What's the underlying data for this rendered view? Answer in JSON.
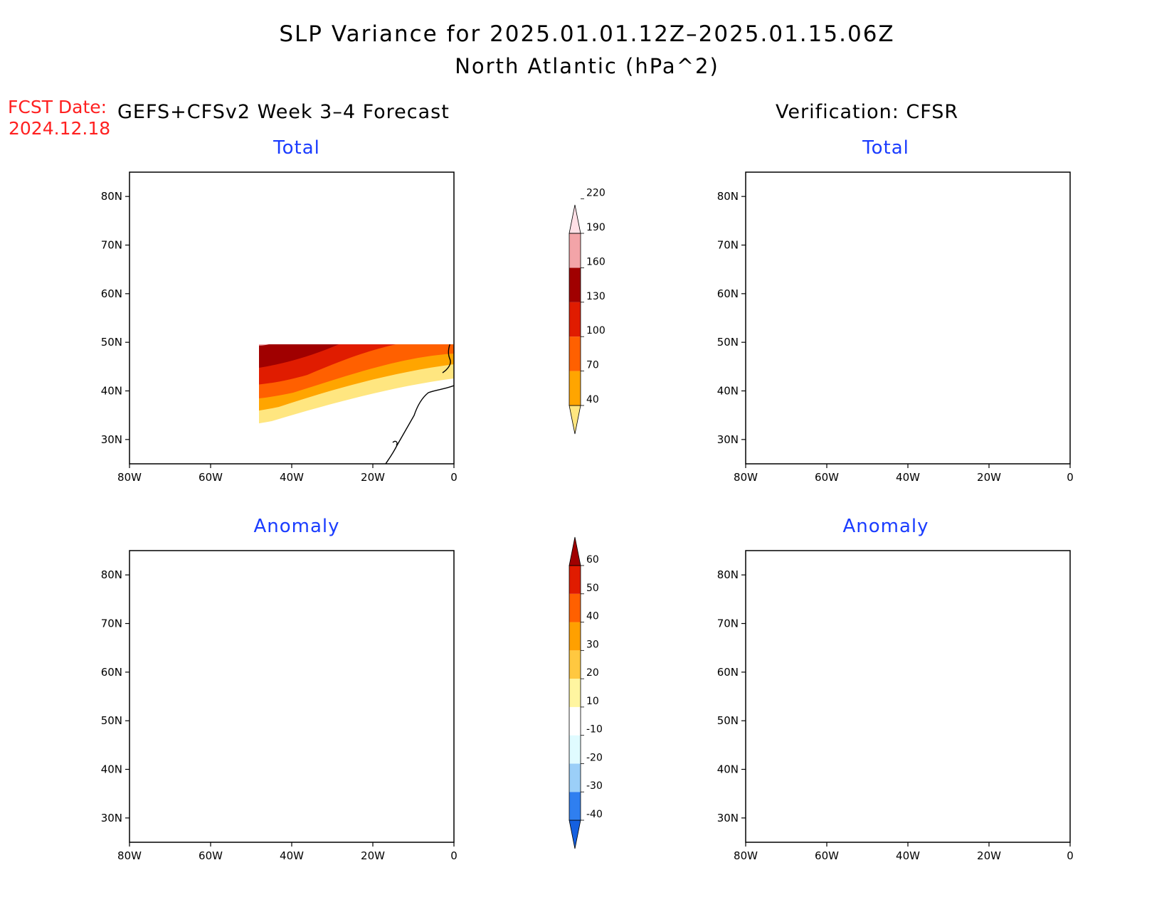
{
  "title": {
    "line1": "SLP Variance for 2025.01.01.12Z–2025.01.15.06Z",
    "line2": "North Atlantic (hPa^2)"
  },
  "fcst_date": {
    "label": "FCST Date:",
    "value": "2024.12.18"
  },
  "columns": {
    "forecast": "GEFS+CFSv2 Week 3–4 Forecast",
    "verification": "Verification: CFSR"
  },
  "panels": {
    "total": "Total",
    "anomaly": "Anomaly"
  },
  "axes": {
    "lat_ticks": [
      "80N",
      "70N",
      "60N",
      "50N",
      "40N",
      "30N"
    ],
    "lon_ticks": [
      "80W",
      "60W",
      "40W",
      "20W",
      "0"
    ]
  },
  "colorbars": {
    "total": {
      "levels": [
        "40",
        "70",
        "100",
        "130",
        "160",
        "190",
        "220"
      ],
      "colors": [
        "#ffe680",
        "#ffa500",
        "#ff6000",
        "#e01c00",
        "#a00000",
        "#f3a4a8",
        "#ffe0e6"
      ]
    },
    "anomaly": {
      "levels": [
        "-40",
        "-30",
        "-20",
        "-10",
        "10",
        "20",
        "30",
        "40",
        "50",
        "60"
      ],
      "colors": [
        "#1560e0",
        "#2f7ff0",
        "#9bcff8",
        "#e0fbff",
        "#ffffff",
        "#fff5a0",
        "#ffc840",
        "#ffa000",
        "#ff6000",
        "#e01c00",
        "#a00000"
      ]
    }
  }
}
